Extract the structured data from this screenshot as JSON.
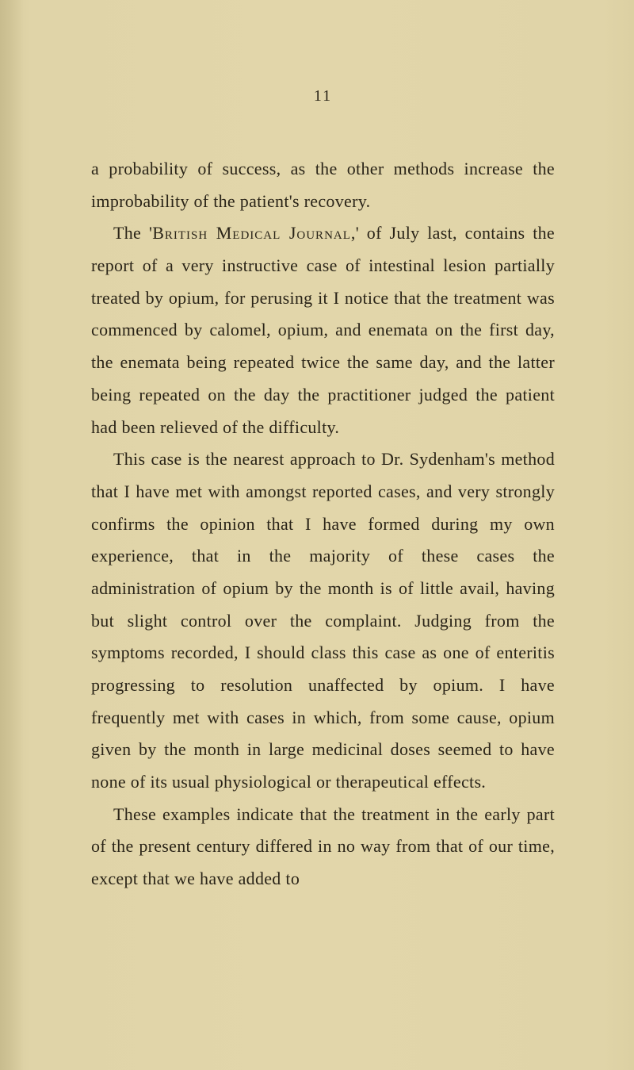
{
  "page": {
    "number": "11",
    "background_color": "#e0d4a8",
    "text_color": "#2a2418",
    "font_size": 22,
    "line_height": 1.85,
    "paragraphs": [
      {
        "indent": false,
        "segments": [
          {
            "text": "a probability of success, as the other methods increase the improbability of the patient's recovery.",
            "style": "normal"
          }
        ]
      },
      {
        "indent": true,
        "segments": [
          {
            "text": "The '",
            "style": "normal"
          },
          {
            "text": "British Medical Journal",
            "style": "small-caps"
          },
          {
            "text": ",' of July last, contains the report of a very instructive case of intestinal lesion partially treated by opium, for perusing it I notice that the treatment was commenced by calomel, opium, and enemata on the first day, the enemata being repeated twice the same day, and the latter being repeated on the day the practitioner judged the patient had been relieved of the difficulty.",
            "style": "normal"
          }
        ]
      },
      {
        "indent": true,
        "segments": [
          {
            "text": "This case is the nearest approach to Dr. Sydenham's method that I have met with amongst reported cases, and very strongly confirms the opinion that I have formed during my own experience, that in the majority of these cases the administration of opium by the month is of little avail, having but slight control over the complaint. Judging from the symptoms recorded, I should class this case as one of enteritis progressing to resolution unaffected by opium. I have frequently met with cases in which, from some cause, opium given by the month in large medicinal doses seemed to have none of its usual physiological or therapeutical effects.",
            "style": "normal"
          }
        ]
      },
      {
        "indent": true,
        "segments": [
          {
            "text": "These examples indicate that the treatment in the early part of the present century differed in no way from that of our time, except that we have added to",
            "style": "normal"
          }
        ]
      }
    ]
  }
}
